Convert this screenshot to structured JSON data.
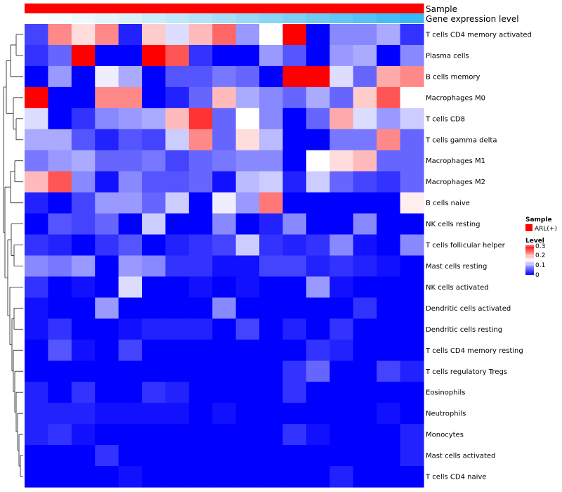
{
  "chart_data": {
    "type": "heatmap",
    "annotations": {
      "sample": {
        "label": "Sample",
        "color": "#ff0000"
      },
      "gene_expression": {
        "label": "Gene expression level",
        "colors": [
          "#ffffff",
          "#f7fcfd",
          "#eef9fc",
          "#e4f5fb",
          "#d9f1fa",
          "#cdecf9",
          "#c1e8f8",
          "#b4e3f7",
          "#a6def6",
          "#98d9f6",
          "#8ad4f6",
          "#7cd0f6",
          "#6ecbf6",
          "#60c6f6",
          "#52c2f7",
          "#44bdf7",
          "#36b9f7"
        ]
      }
    },
    "rows": [
      "T cells CD4 memory activated",
      "Plasma cells",
      "B cells memory",
      "Macrophages M0",
      "T cells CD8",
      "T cells gamma delta",
      "Macrophages M1",
      "Macrophages M2",
      "B cells naive",
      "NK cells resting",
      "T cells follicular helper",
      "Mast cells resting",
      "NK cells activated",
      "Dendritic cells activated",
      "Dendritic cells resting",
      "T cells CD4 memory resting",
      "T cells regulatory  Tregs",
      "Eosinophils",
      "Neutrophils",
      "Monocytes",
      "Mast cells activated",
      "T cells CD4 naive"
    ],
    "values": [
      [
        0.04,
        0.22,
        0.17,
        0.22,
        0.02,
        0.18,
        0.13,
        0.19,
        0.24,
        0.09,
        0.15,
        0.3,
        0.0,
        0.08,
        0.08,
        0.1,
        0.03
      ],
      [
        0.03,
        0.06,
        0.3,
        0.0,
        0.0,
        0.3,
        0.25,
        0.03,
        0.0,
        0.0,
        0.09,
        0.05,
        0.0,
        0.09,
        0.1,
        0.0,
        0.08
      ],
      [
        0.0,
        0.09,
        0.0,
        0.14,
        0.1,
        0.0,
        0.05,
        0.05,
        0.07,
        0.06,
        0.0,
        0.3,
        0.3,
        0.13,
        0.06,
        0.2,
        0.22
      ],
      [
        0.3,
        0.0,
        0.0,
        0.22,
        0.22,
        0.0,
        0.02,
        0.06,
        0.19,
        0.1,
        0.08,
        0.06,
        0.1,
        0.06,
        0.18,
        0.25,
        0.15
      ],
      [
        0.13,
        0.0,
        0.03,
        0.08,
        0.09,
        0.1,
        0.19,
        0.27,
        0.06,
        0.15,
        0.08,
        0.0,
        0.06,
        0.2,
        0.13,
        0.09,
        0.12
      ],
      [
        0.1,
        0.1,
        0.05,
        0.02,
        0.05,
        0.04,
        0.12,
        0.22,
        0.06,
        0.17,
        0.11,
        0.0,
        0.0,
        0.07,
        0.07,
        0.22,
        0.06
      ],
      [
        0.07,
        0.09,
        0.1,
        0.06,
        0.06,
        0.07,
        0.04,
        0.06,
        0.07,
        0.08,
        0.08,
        0.0,
        0.15,
        0.17,
        0.19,
        0.06,
        0.06
      ],
      [
        0.19,
        0.25,
        0.08,
        0.01,
        0.08,
        0.05,
        0.05,
        0.06,
        0.01,
        0.11,
        0.12,
        0.02,
        0.12,
        0.06,
        0.04,
        0.03,
        0.06
      ],
      [
        0.02,
        0.0,
        0.04,
        0.09,
        0.09,
        0.06,
        0.12,
        0.0,
        0.14,
        0.09,
        0.23,
        0.0,
        0.0,
        0.0,
        0.0,
        0.0,
        0.16
      ],
      [
        0.0,
        0.05,
        0.04,
        0.06,
        0.0,
        0.12,
        0.0,
        0.0,
        0.08,
        0.0,
        0.02,
        0.08,
        0.0,
        0.0,
        0.08,
        0.0,
        0.0
      ],
      [
        0.03,
        0.02,
        0.0,
        0.03,
        0.05,
        0.0,
        0.02,
        0.03,
        0.04,
        0.12,
        0.03,
        0.02,
        0.03,
        0.08,
        0.01,
        0.0,
        0.08
      ],
      [
        0.08,
        0.07,
        0.09,
        0.0,
        0.09,
        0.08,
        0.03,
        0.03,
        0.01,
        0.01,
        0.04,
        0.04,
        0.02,
        0.03,
        0.02,
        0.01,
        0.0
      ],
      [
        0.03,
        0.0,
        0.01,
        0.0,
        0.13,
        0.0,
        0.0,
        0.01,
        0.0,
        0.01,
        0.0,
        0.0,
        0.09,
        0.01,
        0.0,
        0.0,
        0.0
      ],
      [
        0.01,
        0.0,
        0.0,
        0.09,
        0.0,
        0.0,
        0.0,
        0.0,
        0.08,
        0.0,
        0.0,
        0.0,
        0.0,
        0.0,
        0.03,
        0.0,
        0.0
      ],
      [
        0.01,
        0.03,
        0.0,
        0.0,
        0.01,
        0.02,
        0.02,
        0.02,
        0.0,
        0.04,
        0.0,
        0.02,
        0.0,
        0.03,
        0.0,
        0.0,
        0.0
      ],
      [
        0.0,
        0.05,
        0.01,
        0.0,
        0.04,
        0.0,
        0.0,
        0.0,
        0.0,
        0.0,
        0.0,
        0.0,
        0.03,
        0.02,
        0.0,
        0.0,
        0.0
      ],
      [
        0.0,
        0.0,
        0.0,
        0.0,
        0.0,
        0.0,
        0.0,
        0.0,
        0.0,
        0.0,
        0.0,
        0.03,
        0.06,
        0.0,
        0.0,
        0.04,
        0.02
      ],
      [
        0.02,
        0.0,
        0.03,
        0.0,
        0.0,
        0.03,
        0.02,
        0.0,
        0.0,
        0.0,
        0.0,
        0.03,
        0.0,
        0.0,
        0.0,
        0.0,
        0.0
      ],
      [
        0.02,
        0.02,
        0.02,
        0.01,
        0.01,
        0.01,
        0.01,
        0.0,
        0.01,
        0.0,
        0.0,
        0.0,
        0.0,
        0.0,
        0.0,
        0.01,
        0.0
      ],
      [
        0.02,
        0.03,
        0.01,
        0.0,
        0.0,
        0.0,
        0.0,
        0.0,
        0.0,
        0.0,
        0.0,
        0.03,
        0.01,
        0.0,
        0.0,
        0.0,
        0.02
      ],
      [
        0.0,
        0.0,
        0.0,
        0.03,
        0.0,
        0.0,
        0.0,
        0.0,
        0.0,
        0.0,
        0.0,
        0.0,
        0.0,
        0.0,
        0.0,
        0.0,
        0.02
      ],
      [
        0.0,
        0.0,
        0.0,
        0.0,
        0.01,
        0.0,
        0.0,
        0.0,
        0.0,
        0.0,
        0.0,
        0.0,
        0.0,
        0.02,
        0.0,
        0.0,
        0.0
      ]
    ],
    "color_scale": {
      "min": 0,
      "max": 0.3,
      "low": "#0000ff",
      "mid": "#ffffff",
      "high": "#ff0000",
      "midpoint": 0.15
    },
    "legend": {
      "placement": "right",
      "sample_title": "Sample",
      "sample_entry": "ARL(+)",
      "level_title": "Level",
      "level_ticks": [
        "0.3",
        "0.2",
        "0.1",
        "0"
      ]
    },
    "row_dendrogram": true
  }
}
